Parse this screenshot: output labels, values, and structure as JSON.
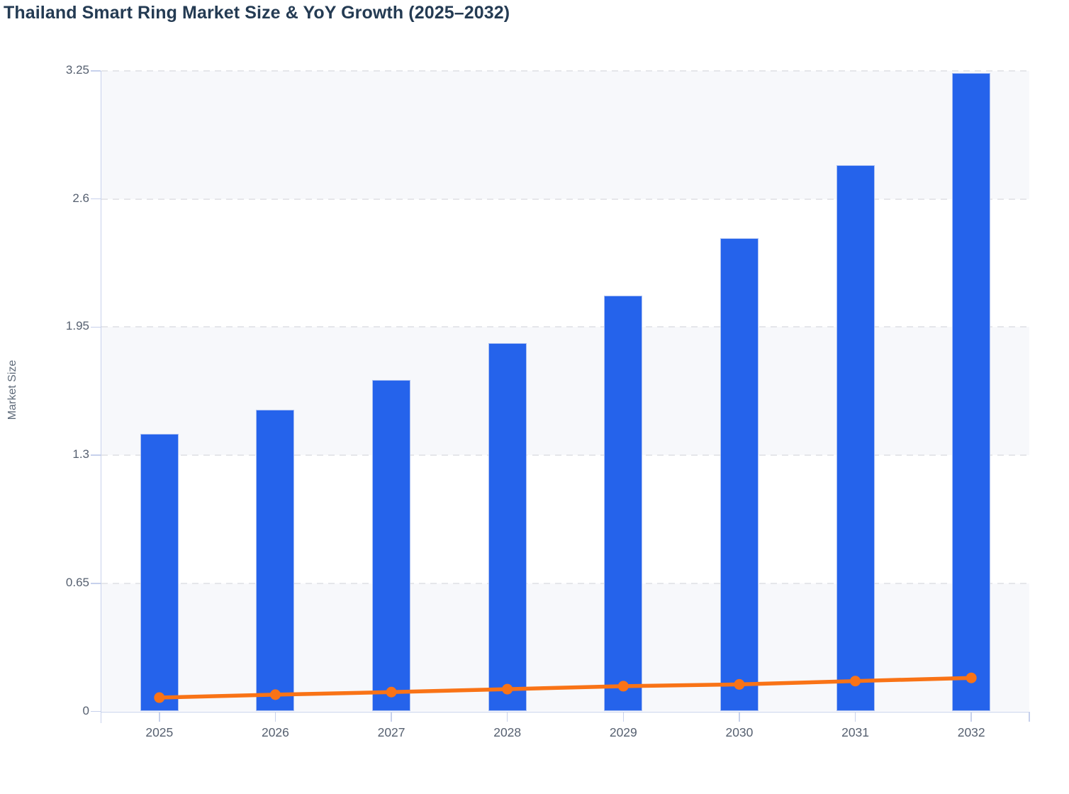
{
  "chart_data": {
    "type": "bar+line",
    "title": "Thailand Smart Ring Market Size & YoY Growth (2025–2032)",
    "ylabel": "Market Size",
    "xlabel": "",
    "categories": [
      "2025",
      "2026",
      "2027",
      "2028",
      "2029",
      "2030",
      "2031",
      "2032"
    ],
    "series": [
      {
        "name": "Market Size",
        "type": "bar",
        "color": "#2563eb",
        "values": [
          1.41,
          1.53,
          1.68,
          1.87,
          2.11,
          2.4,
          2.77,
          3.24
        ]
      },
      {
        "name": "YoY Growth",
        "type": "line",
        "color": "#f97316",
        "marker": "circle",
        "values": [
          0.07,
          0.085,
          0.098,
          0.113,
          0.128,
          0.137,
          0.154,
          0.17
        ]
      }
    ],
    "ylim": [
      0,
      3.25
    ],
    "yticks": [
      0,
      0.65,
      1.3,
      1.95,
      2.6,
      3.25
    ],
    "ytick_labels": [
      "0",
      "0.65",
      "1.3",
      "1.95",
      "2.6",
      "3.25"
    ],
    "grid": "dashed horizontal gridlines, alternating horizontal background bands",
    "legend": "none",
    "colors": {
      "title_text": "#243b53",
      "tick_text": "#566070",
      "axis_title_text": "#5f6b7a",
      "axis_line": "#c7d1ec",
      "gridline": "#e5e6ea",
      "band_fill": "#f7f8fb",
      "bar_fill": "#2563eb",
      "bar_border": "#abc0f2",
      "line_stroke": "#f97316",
      "background": "#ffffff"
    }
  }
}
